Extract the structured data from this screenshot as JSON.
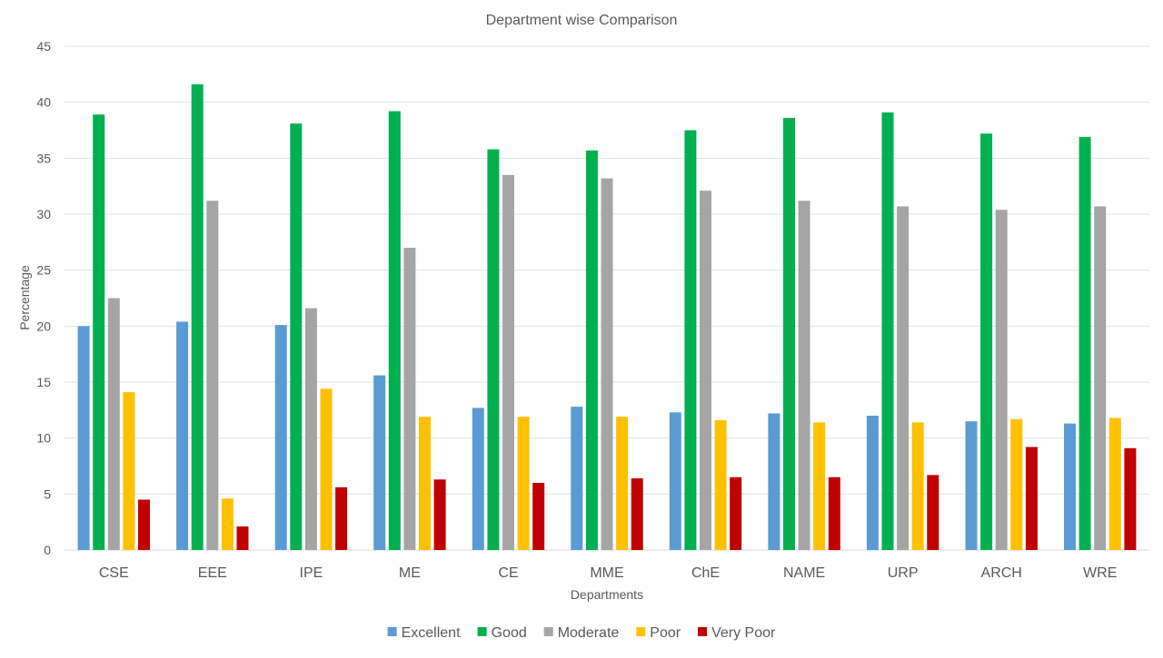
{
  "chart_data": {
    "type": "bar",
    "title": "Department wise Comparison",
    "xlabel": "Departments",
    "ylabel": "Percentage",
    "ylim": [
      0,
      45
    ],
    "yticks": [
      0,
      5,
      10,
      15,
      20,
      25,
      30,
      35,
      40,
      45
    ],
    "grid": true,
    "legend_position": "bottom",
    "categories": [
      "CSE",
      "EEE",
      "IPE",
      "ME",
      "CE",
      "MME",
      "ChE",
      "NAME",
      "URP",
      "ARCH",
      "WRE"
    ],
    "series": [
      {
        "name": "Excellent",
        "color": "#5b9bd5",
        "values": [
          20.0,
          20.4,
          20.1,
          15.6,
          12.7,
          12.8,
          12.3,
          12.2,
          12.0,
          11.5,
          11.3
        ]
      },
      {
        "name": "Good",
        "color": "#00b050",
        "values": [
          38.9,
          41.6,
          38.1,
          39.2,
          35.8,
          35.7,
          37.5,
          38.6,
          39.1,
          37.2,
          36.9
        ]
      },
      {
        "name": "Moderate",
        "color": "#a5a5a5",
        "values": [
          22.5,
          31.2,
          21.6,
          27.0,
          33.5,
          33.2,
          32.1,
          31.2,
          30.7,
          30.4,
          30.7
        ]
      },
      {
        "name": "Poor",
        "color": "#ffc000",
        "values": [
          14.1,
          4.6,
          14.4,
          11.9,
          11.9,
          11.9,
          11.6,
          11.4,
          11.4,
          11.7,
          11.8
        ]
      },
      {
        "name": "Very Poor",
        "color": "#c00000",
        "values": [
          4.5,
          2.1,
          5.6,
          6.3,
          6.0,
          6.4,
          6.5,
          6.5,
          6.7,
          9.2,
          9.1
        ]
      }
    ]
  }
}
